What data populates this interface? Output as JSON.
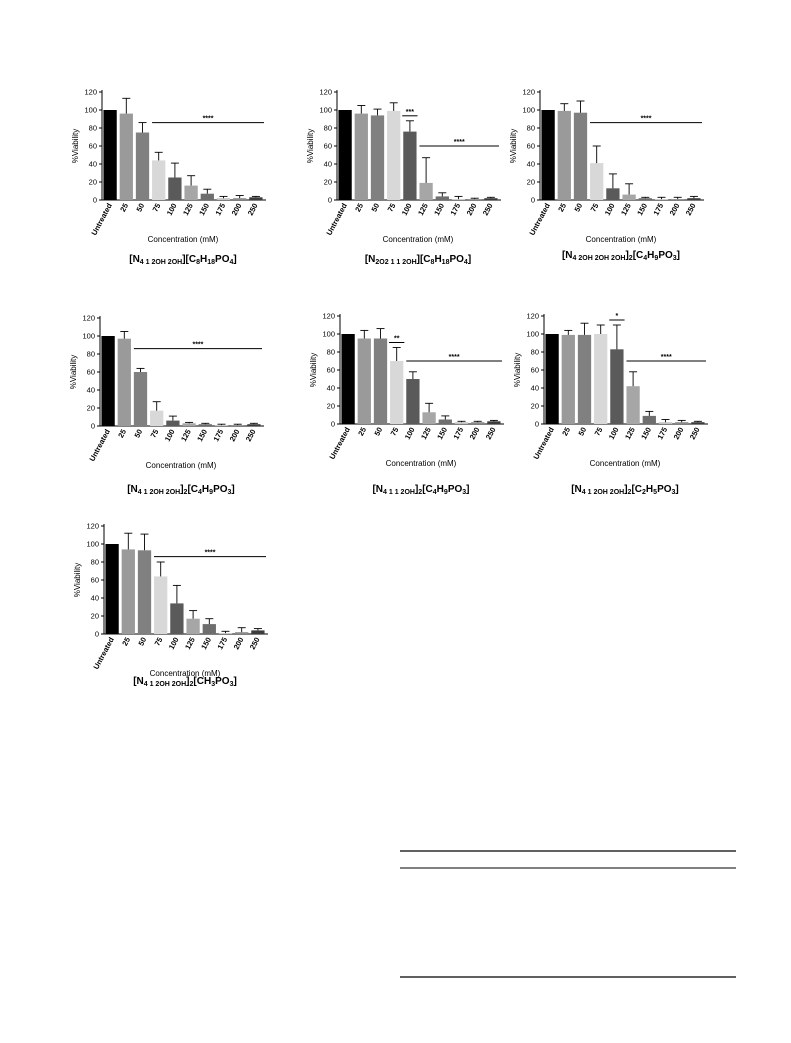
{
  "chart_data": [
    {
      "type": "bar",
      "caption_parts": [
        [
          "t",
          "[N"
        ],
        [
          "s",
          "4 1 2OH 2OH"
        ],
        [
          "t",
          "][C"
        ],
        [
          "b",
          "8"
        ],
        [
          "t",
          "H"
        ],
        [
          "b",
          "18"
        ],
        [
          "t",
          "PO"
        ],
        [
          "b",
          "4"
        ],
        [
          "t",
          "]"
        ]
      ],
      "categories": [
        "Untreated",
        "25",
        "50",
        "75",
        "100",
        "125",
        "150",
        "175",
        "200",
        "250"
      ],
      "values": [
        100,
        96,
        75,
        44,
        25,
        16,
        7,
        2,
        2,
        3
      ],
      "errors": [
        0,
        17,
        11,
        9,
        16,
        11,
        5,
        2,
        3,
        1
      ],
      "xlabel": "Concentration (mM)",
      "ylabel": "%Viability",
      "ylim": [
        0,
        120
      ],
      "yticks": [
        0,
        20,
        40,
        60,
        80,
        100,
        120
      ],
      "significance": [
        {
          "label": "****",
          "from": 3,
          "to": 9
        }
      ]
    },
    {
      "type": "bar",
      "caption_parts": [
        [
          "t",
          "[N"
        ],
        [
          "s",
          "2O2 1 1 2OH"
        ],
        [
          "t",
          "][C"
        ],
        [
          "b",
          "8"
        ],
        [
          "t",
          "H"
        ],
        [
          "b",
          "18"
        ],
        [
          "t",
          "PO"
        ],
        [
          "b",
          "4"
        ],
        [
          "t",
          "]"
        ]
      ],
      "categories": [
        "Untreated",
        "25",
        "50",
        "75",
        "100",
        "125",
        "150",
        "175",
        "200",
        "250"
      ],
      "values": [
        100,
        96,
        94,
        99,
        76,
        19,
        4,
        1,
        1,
        2
      ],
      "errors": [
        0,
        9,
        7,
        9,
        12,
        28,
        4,
        3,
        1,
        1
      ],
      "xlabel": "Concentration (mM)",
      "ylabel": "%Viability",
      "ylim": [
        0,
        120
      ],
      "yticks": [
        0,
        20,
        40,
        60,
        80,
        100,
        120
      ],
      "significance": [
        {
          "label": "***",
          "from": 4,
          "to": 4
        },
        {
          "label": "****",
          "from": 5,
          "to": 9
        }
      ]
    },
    {
      "type": "bar",
      "caption_parts": [
        [
          "t",
          "[N"
        ],
        [
          "s",
          "4 2OH 2OH 2OH"
        ],
        [
          "t",
          "]"
        ],
        [
          "b",
          "2"
        ],
        [
          "t",
          "[C"
        ],
        [
          "b",
          "4"
        ],
        [
          "t",
          "H"
        ],
        [
          "b",
          "9"
        ],
        [
          "t",
          "PO"
        ],
        [
          "b",
          "3"
        ],
        [
          "t",
          "]"
        ]
      ],
      "categories": [
        "Untreated",
        "25",
        "50",
        "75",
        "100",
        "125",
        "150",
        "175",
        "200",
        "250"
      ],
      "values": [
        100,
        99,
        97,
        41,
        13,
        6,
        2,
        1,
        1,
        2
      ],
      "errors": [
        0,
        8,
        13,
        19,
        16,
        12,
        1,
        2,
        2,
        2
      ],
      "xlabel": "Concentration (mM)",
      "ylabel": "%Viability",
      "ylim": [
        0,
        120
      ],
      "yticks": [
        0,
        20,
        40,
        60,
        80,
        100,
        120
      ],
      "significance": [
        {
          "label": "****",
          "from": 3,
          "to": 9
        }
      ]
    },
    {
      "type": "bar",
      "caption_parts": [
        [
          "t",
          "[N"
        ],
        [
          "s",
          "4 1 2OH 2OH"
        ],
        [
          "t",
          "]"
        ],
        [
          "b",
          "2"
        ],
        [
          "t",
          "[C"
        ],
        [
          "b",
          "4"
        ],
        [
          "t",
          "H"
        ],
        [
          "b",
          "9"
        ],
        [
          "t",
          "PO"
        ],
        [
          "b",
          "3"
        ],
        [
          "t",
          "]"
        ]
      ],
      "categories": [
        "Untreated",
        "25",
        "50",
        "75",
        "100",
        "125",
        "150",
        "175",
        "200",
        "250"
      ],
      "values": [
        100,
        97,
        60,
        17,
        6,
        3,
        2,
        1,
        1,
        2
      ],
      "errors": [
        0,
        8,
        4,
        10,
        5,
        1,
        1,
        1,
        1,
        1
      ],
      "xlabel": "Concentration (mM)",
      "ylabel": "%Viability",
      "ylim": [
        0,
        120
      ],
      "yticks": [
        0,
        20,
        40,
        60,
        80,
        100,
        120
      ],
      "significance": [
        {
          "label": "****",
          "from": 2,
          "to": 9
        }
      ]
    },
    {
      "type": "bar",
      "caption_parts": [
        [
          "t",
          "[N"
        ],
        [
          "s",
          "4 1 1 2OH"
        ],
        [
          "t",
          "]"
        ],
        [
          "b",
          "2"
        ],
        [
          "t",
          "[C"
        ],
        [
          "b",
          "4"
        ],
        [
          "t",
          "H"
        ],
        [
          "b",
          "9"
        ],
        [
          "t",
          "PO"
        ],
        [
          "b",
          "3"
        ],
        [
          "t",
          "]"
        ]
      ],
      "categories": [
        "Untreated",
        "25",
        "50",
        "75",
        "100",
        "125",
        "150",
        "175",
        "200",
        "250"
      ],
      "values": [
        100,
        95,
        95,
        70,
        50,
        13,
        5,
        2,
        2,
        3
      ],
      "errors": [
        0,
        9,
        11,
        15,
        8,
        10,
        4,
        1,
        1,
        1
      ],
      "xlabel": "Concentration (mM)",
      "ylabel": "%Viability",
      "ylim": [
        0,
        120
      ],
      "yticks": [
        0,
        20,
        40,
        60,
        80,
        100,
        120
      ],
      "significance": [
        {
          "label": "**",
          "from": 3,
          "to": 3
        },
        {
          "label": "****",
          "from": 4,
          "to": 9
        }
      ]
    },
    {
      "type": "bar",
      "caption_parts": [
        [
          "t",
          "[N"
        ],
        [
          "s",
          "4 1 2OH 2OH"
        ],
        [
          "t",
          "]"
        ],
        [
          "b",
          "2"
        ],
        [
          "t",
          "[C"
        ],
        [
          "b",
          "2"
        ],
        [
          "t",
          "H"
        ],
        [
          "b",
          "5"
        ],
        [
          "t",
          "PO"
        ],
        [
          "b",
          "3"
        ],
        [
          "t",
          "]"
        ]
      ],
      "categories": [
        "Untreated",
        "25",
        "50",
        "75",
        "100",
        "125",
        "150",
        "175",
        "200",
        "250"
      ],
      "values": [
        100,
        99,
        99,
        100,
        83,
        42,
        9,
        2,
        2,
        2
      ],
      "errors": [
        0,
        5,
        13,
        10,
        27,
        16,
        5,
        3,
        2,
        1
      ],
      "xlabel": "Concentration (mM)",
      "ylabel": "%Viability",
      "ylim": [
        0,
        120
      ],
      "yticks": [
        0,
        20,
        40,
        60,
        80,
        100,
        120
      ],
      "significance": [
        {
          "label": "*",
          "from": 4,
          "to": 4
        },
        {
          "label": "****",
          "from": 5,
          "to": 9
        }
      ]
    },
    {
      "type": "bar",
      "caption_parts": [
        [
          "t",
          "[N"
        ],
        [
          "s",
          "4 1 2OH 2OH"
        ],
        [
          "t",
          "]"
        ],
        [
          "b",
          "2"
        ],
        [
          "t",
          "[CH"
        ],
        [
          "b",
          "3"
        ],
        [
          "t",
          "PO"
        ],
        [
          "b",
          "3"
        ],
        [
          "t",
          "]"
        ]
      ],
      "categories": [
        "Untreated",
        "25",
        "50",
        "75",
        "100",
        "125",
        "150",
        "175",
        "200",
        "250"
      ],
      "values": [
        100,
        94,
        93,
        64,
        34,
        17,
        11,
        1,
        2,
        4
      ],
      "errors": [
        0,
        18,
        18,
        16,
        20,
        9,
        6,
        2,
        5,
        2
      ],
      "xlabel": "Concentration (mM)",
      "ylabel": "%Viability",
      "ylim": [
        0,
        120
      ],
      "yticks": [
        0,
        20,
        40,
        60,
        80,
        100,
        120
      ],
      "significance": [
        {
          "label": "****",
          "from": 3,
          "to": 9
        }
      ]
    }
  ],
  "bar_colors": [
    "#000000",
    "#9a9a9a",
    "#808080",
    "#d8d8d8",
    "#5a5a5a",
    "#a6a6a6",
    "#6e6e6e",
    "#c4c4c4",
    "#8a8a8a",
    "#3c3c3c"
  ],
  "rule_color": "#000000"
}
